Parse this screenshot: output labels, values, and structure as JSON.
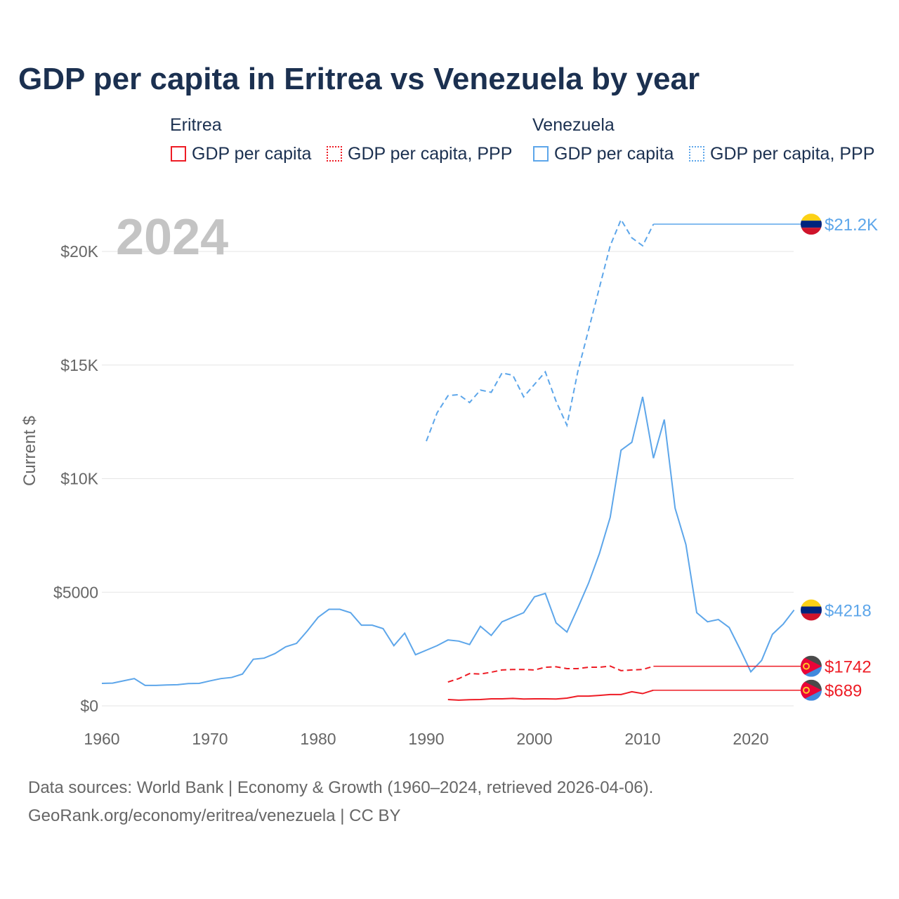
{
  "title": "GDP per capita in Eritrea vs Venezuela by year",
  "legend": {
    "eritrea": "Eritrea",
    "venezuela": "Venezuela",
    "gdp": "GDP per capita",
    "ppp": "GDP per capita, PPP"
  },
  "year_label": "2024",
  "source_line1": "Data sources: World Bank | Economy & Growth (1960–2024, retrieved 2026-04-06).",
  "source_line2": "GeoRank.org/economy/eritrea/venezuela | CC BY",
  "colors": {
    "eritrea": "#ee1c25",
    "venezuela": "#5da6ea"
  },
  "chart_data": {
    "type": "line",
    "title": "GDP per capita in Eritrea vs Venezuela by year",
    "xlabel": "",
    "ylabel": "Current $",
    "xlim": [
      1960,
      2024
    ],
    "ylim": [
      0,
      22000
    ],
    "xticks": [
      1960,
      1970,
      1980,
      1990,
      2000,
      2010,
      2020
    ],
    "yticks": [
      {
        "v": 0,
        "l": "$0"
      },
      {
        "v": 5000,
        "l": "$5000"
      },
      {
        "v": 10000,
        "l": "$10K"
      },
      {
        "v": 15000,
        "l": "$15K"
      },
      {
        "v": 20000,
        "l": "$20K"
      }
    ],
    "series": [
      {
        "name": "Venezuela GDP per capita",
        "country": "venezuela",
        "dashed": false,
        "end_label": "$4218",
        "start": 1960,
        "values": [
          990,
          1000,
          1100,
          1200,
          900,
          900,
          920,
          930,
          980,
          990,
          1100,
          1200,
          1250,
          1400,
          2050,
          2100,
          2300,
          2600,
          2750,
          3300,
          3900,
          4250,
          4250,
          4100,
          3550,
          3550,
          3400,
          2650,
          3200,
          2250,
          2450,
          2650,
          2900,
          2850,
          2700,
          3500,
          3100,
          3700,
          3900,
          4100,
          4800,
          4950,
          3650,
          3250,
          4300,
          5400,
          6700,
          8300,
          11250,
          11600,
          13600,
          10900,
          12600,
          8700,
          7100,
          4100,
          3700,
          3800,
          3450,
          2500,
          1500,
          2000,
          3150,
          3600,
          4218
        ]
      },
      {
        "name": "Venezuela GDP per capita, PPP",
        "country": "venezuela",
        "dashed": true,
        "end_label": "$21.2K",
        "start": 1990,
        "values": [
          11650,
          12900,
          13650,
          13700,
          13350,
          13900,
          13800,
          14650,
          14550,
          13600,
          14150,
          14700,
          13400,
          12350,
          14700,
          16550,
          18400,
          20250,
          21400,
          20600,
          20250,
          21200
        ]
      },
      {
        "name": "Eritrea GDP per capita, PPP",
        "country": "eritrea",
        "dashed": true,
        "end_label": "$1742",
        "start": 1992,
        "values": [
          1050,
          1200,
          1420,
          1400,
          1480,
          1580,
          1600,
          1600,
          1580,
          1700,
          1720,
          1640,
          1640,
          1700,
          1700,
          1750,
          1550,
          1580,
          1600,
          1742
        ]
      },
      {
        "name": "Eritrea GDP per capita",
        "country": "eritrea",
        "dashed": false,
        "end_label": "$689",
        "start": 1992,
        "values": [
          280,
          250,
          270,
          280,
          310,
          310,
          330,
          300,
          310,
          310,
          300,
          340,
          430,
          430,
          460,
          500,
          500,
          620,
          540,
          689
        ]
      }
    ]
  }
}
